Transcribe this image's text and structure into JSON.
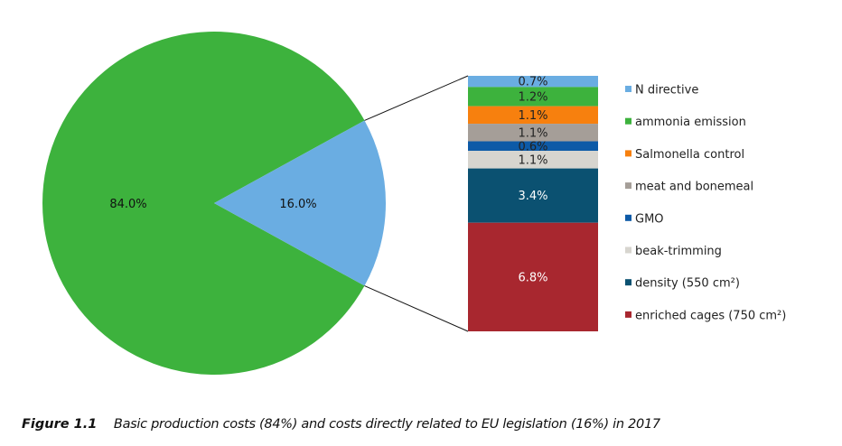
{
  "chart_data": {
    "type": "pie",
    "subtype": "bar-of-pie",
    "pie": {
      "slices": [
        {
          "label": "84.0%",
          "value": 84.0,
          "color": "#3db23d"
        },
        {
          "label": "16.0%",
          "value": 16.0,
          "color": "#6aade2"
        }
      ]
    },
    "bar": {
      "segments": [
        {
          "name": "N directive",
          "value": 0.7,
          "label": "0.7%",
          "color": "#6aade2",
          "text_color": "#222"
        },
        {
          "name": "ammonia emission",
          "value": 1.2,
          "label": "1.2%",
          "color": "#3db23d",
          "text_color": "#222"
        },
        {
          "name": "Salmonella control",
          "value": 1.1,
          "label": "1.1%",
          "color": "#f7800e",
          "text_color": "#222"
        },
        {
          "name": "meat and bonemeal",
          "value": 1.1,
          "label": "1.1%",
          "color": "#a59e98",
          "text_color": "#222"
        },
        {
          "name": "GMO",
          "value": 0.6,
          "label": "0.6%",
          "color": "#0d5aa7",
          "text_color": "#222"
        },
        {
          "name": "beak-trimming",
          "value": 1.1,
          "label": "1.1%",
          "color": "#d7d5cf",
          "text_color": "#222"
        },
        {
          "name": "density (550 cm²)",
          "value": 3.4,
          "label": "3.4%",
          "color": "#0b5171",
          "text_color": "#fff"
        },
        {
          "name": "enriched cages (750 cm²)",
          "value": 6.8,
          "label": "6.8%",
          "color": "#a8272f",
          "text_color": "#fff"
        }
      ]
    },
    "legend_placement": "right"
  },
  "caption": {
    "figure": "Figure 1.1",
    "text": "Basic production costs (84%) and costs directly related to EU legislation (16%) in 2017"
  }
}
